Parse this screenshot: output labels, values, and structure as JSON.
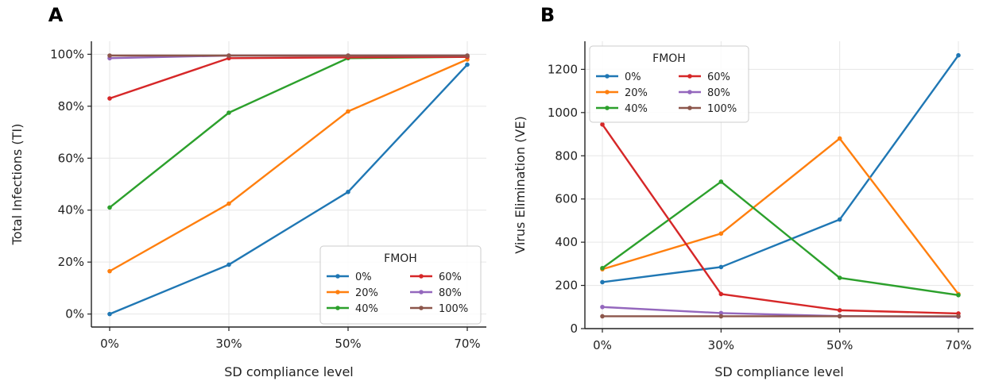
{
  "colors": {
    "0%": "#1f77b4",
    "20%": "#ff7f0e",
    "40%": "#2ca02c",
    "60%": "#d62728",
    "80%": "#9467bd",
    "100%": "#8c564b",
    "grid": "#e6e6e6",
    "axis": "#222222"
  },
  "chart_data": [
    {
      "panel": "A",
      "type": "line",
      "categories": [
        "0%",
        "30%",
        "50%",
        "70%"
      ],
      "xlabel": "SD compliance level",
      "ylabel": "Total Infections (TI)",
      "ylim": [
        -5,
        105
      ],
      "yticks": [
        0,
        20,
        40,
        60,
        80,
        100
      ],
      "ytick_labels": [
        "0%",
        "20%",
        "40%",
        "60%",
        "80%",
        "100%"
      ],
      "grid": true,
      "legend": {
        "title": "FMOH",
        "position": "lower-right",
        "columns": 2
      },
      "series": [
        {
          "name": "0%",
          "values": [
            0,
            19,
            47,
            96
          ]
        },
        {
          "name": "20%",
          "values": [
            16.5,
            42.5,
            78,
            98
          ]
        },
        {
          "name": "40%",
          "values": [
            41,
            77.5,
            98.5,
            99
          ]
        },
        {
          "name": "60%",
          "values": [
            83,
            98.5,
            98.8,
            99
          ]
        },
        {
          "name": "80%",
          "values": [
            98.5,
            99.5,
            99.5,
            99.5
          ]
        },
        {
          "name": "100%",
          "values": [
            99.5,
            99.5,
            99.5,
            99.5
          ]
        }
      ]
    },
    {
      "panel": "B",
      "type": "line",
      "categories": [
        "0%",
        "30%",
        "50%",
        "70%"
      ],
      "xlabel": "SD compliance level",
      "ylabel": "Virus Elimination (VE)",
      "ylim": [
        0,
        1330
      ],
      "yticks": [
        0,
        200,
        400,
        600,
        800,
        1000,
        1200
      ],
      "ytick_labels": [
        "0",
        "200",
        "400",
        "600",
        "800",
        "1000",
        "1200"
      ],
      "grid": true,
      "legend": {
        "title": "FMOH",
        "position": "upper-left",
        "columns": 2
      },
      "series": [
        {
          "name": "0%",
          "values": [
            215,
            285,
            505,
            1265
          ]
        },
        {
          "name": "20%",
          "values": [
            275,
            440,
            880,
            160
          ]
        },
        {
          "name": "40%",
          "values": [
            280,
            680,
            235,
            155
          ]
        },
        {
          "name": "60%",
          "values": [
            945,
            160,
            85,
            70
          ]
        },
        {
          "name": "80%",
          "values": [
            100,
            72,
            58,
            55
          ]
        },
        {
          "name": "100%",
          "values": [
            57,
            57,
            57,
            57
          ]
        }
      ]
    }
  ]
}
